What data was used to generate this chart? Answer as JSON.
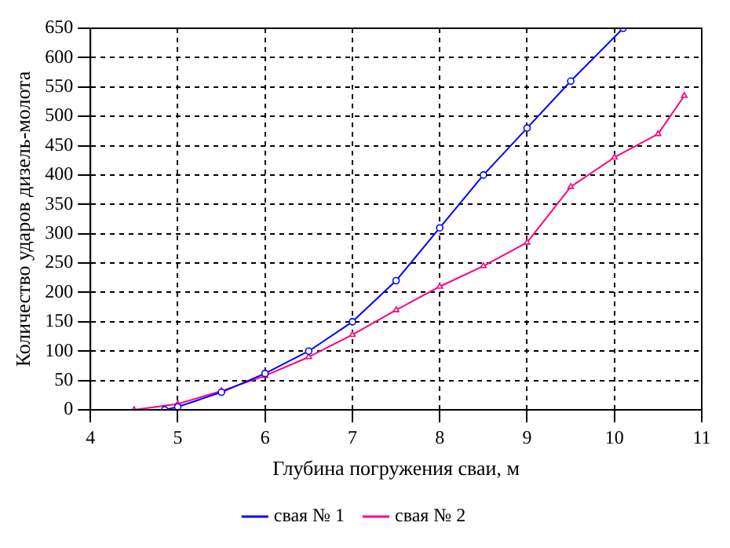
{
  "chart_data": {
    "type": "line",
    "xlabel": "Глубина погружения сваи, м",
    "ylabel": "Количество ударов дизель-молота",
    "xlim": [
      4,
      11
    ],
    "xticks": [
      4,
      5,
      6,
      7,
      8,
      9,
      10,
      11
    ],
    "ylim": [
      0,
      650
    ],
    "yticks": [
      0,
      50,
      100,
      150,
      200,
      250,
      300,
      350,
      400,
      450,
      500,
      550,
      600,
      650
    ],
    "grid": true,
    "legend": "bottom",
    "series": [
      {
        "name": "свая № 1",
        "color": "#0000ff",
        "marker": "circle",
        "x": [
          4.85,
          5,
          5.5,
          6,
          6.5,
          7,
          7.5,
          8,
          8.5,
          9,
          9.5,
          10.1
        ],
        "values": [
          0,
          5,
          30,
          62,
          100,
          150,
          220,
          310,
          400,
          480,
          560,
          650
        ]
      },
      {
        "name": "свая № 2",
        "color": "#ff0080",
        "marker": "triangle",
        "x": [
          4.5,
          5,
          5.5,
          6,
          6.5,
          7,
          7.5,
          8,
          8.5,
          9,
          9.5,
          10,
          10.5,
          10.8
        ],
        "values": [
          0,
          10,
          32,
          58,
          90,
          128,
          170,
          210,
          245,
          285,
          380,
          430,
          470,
          535
        ]
      }
    ]
  }
}
